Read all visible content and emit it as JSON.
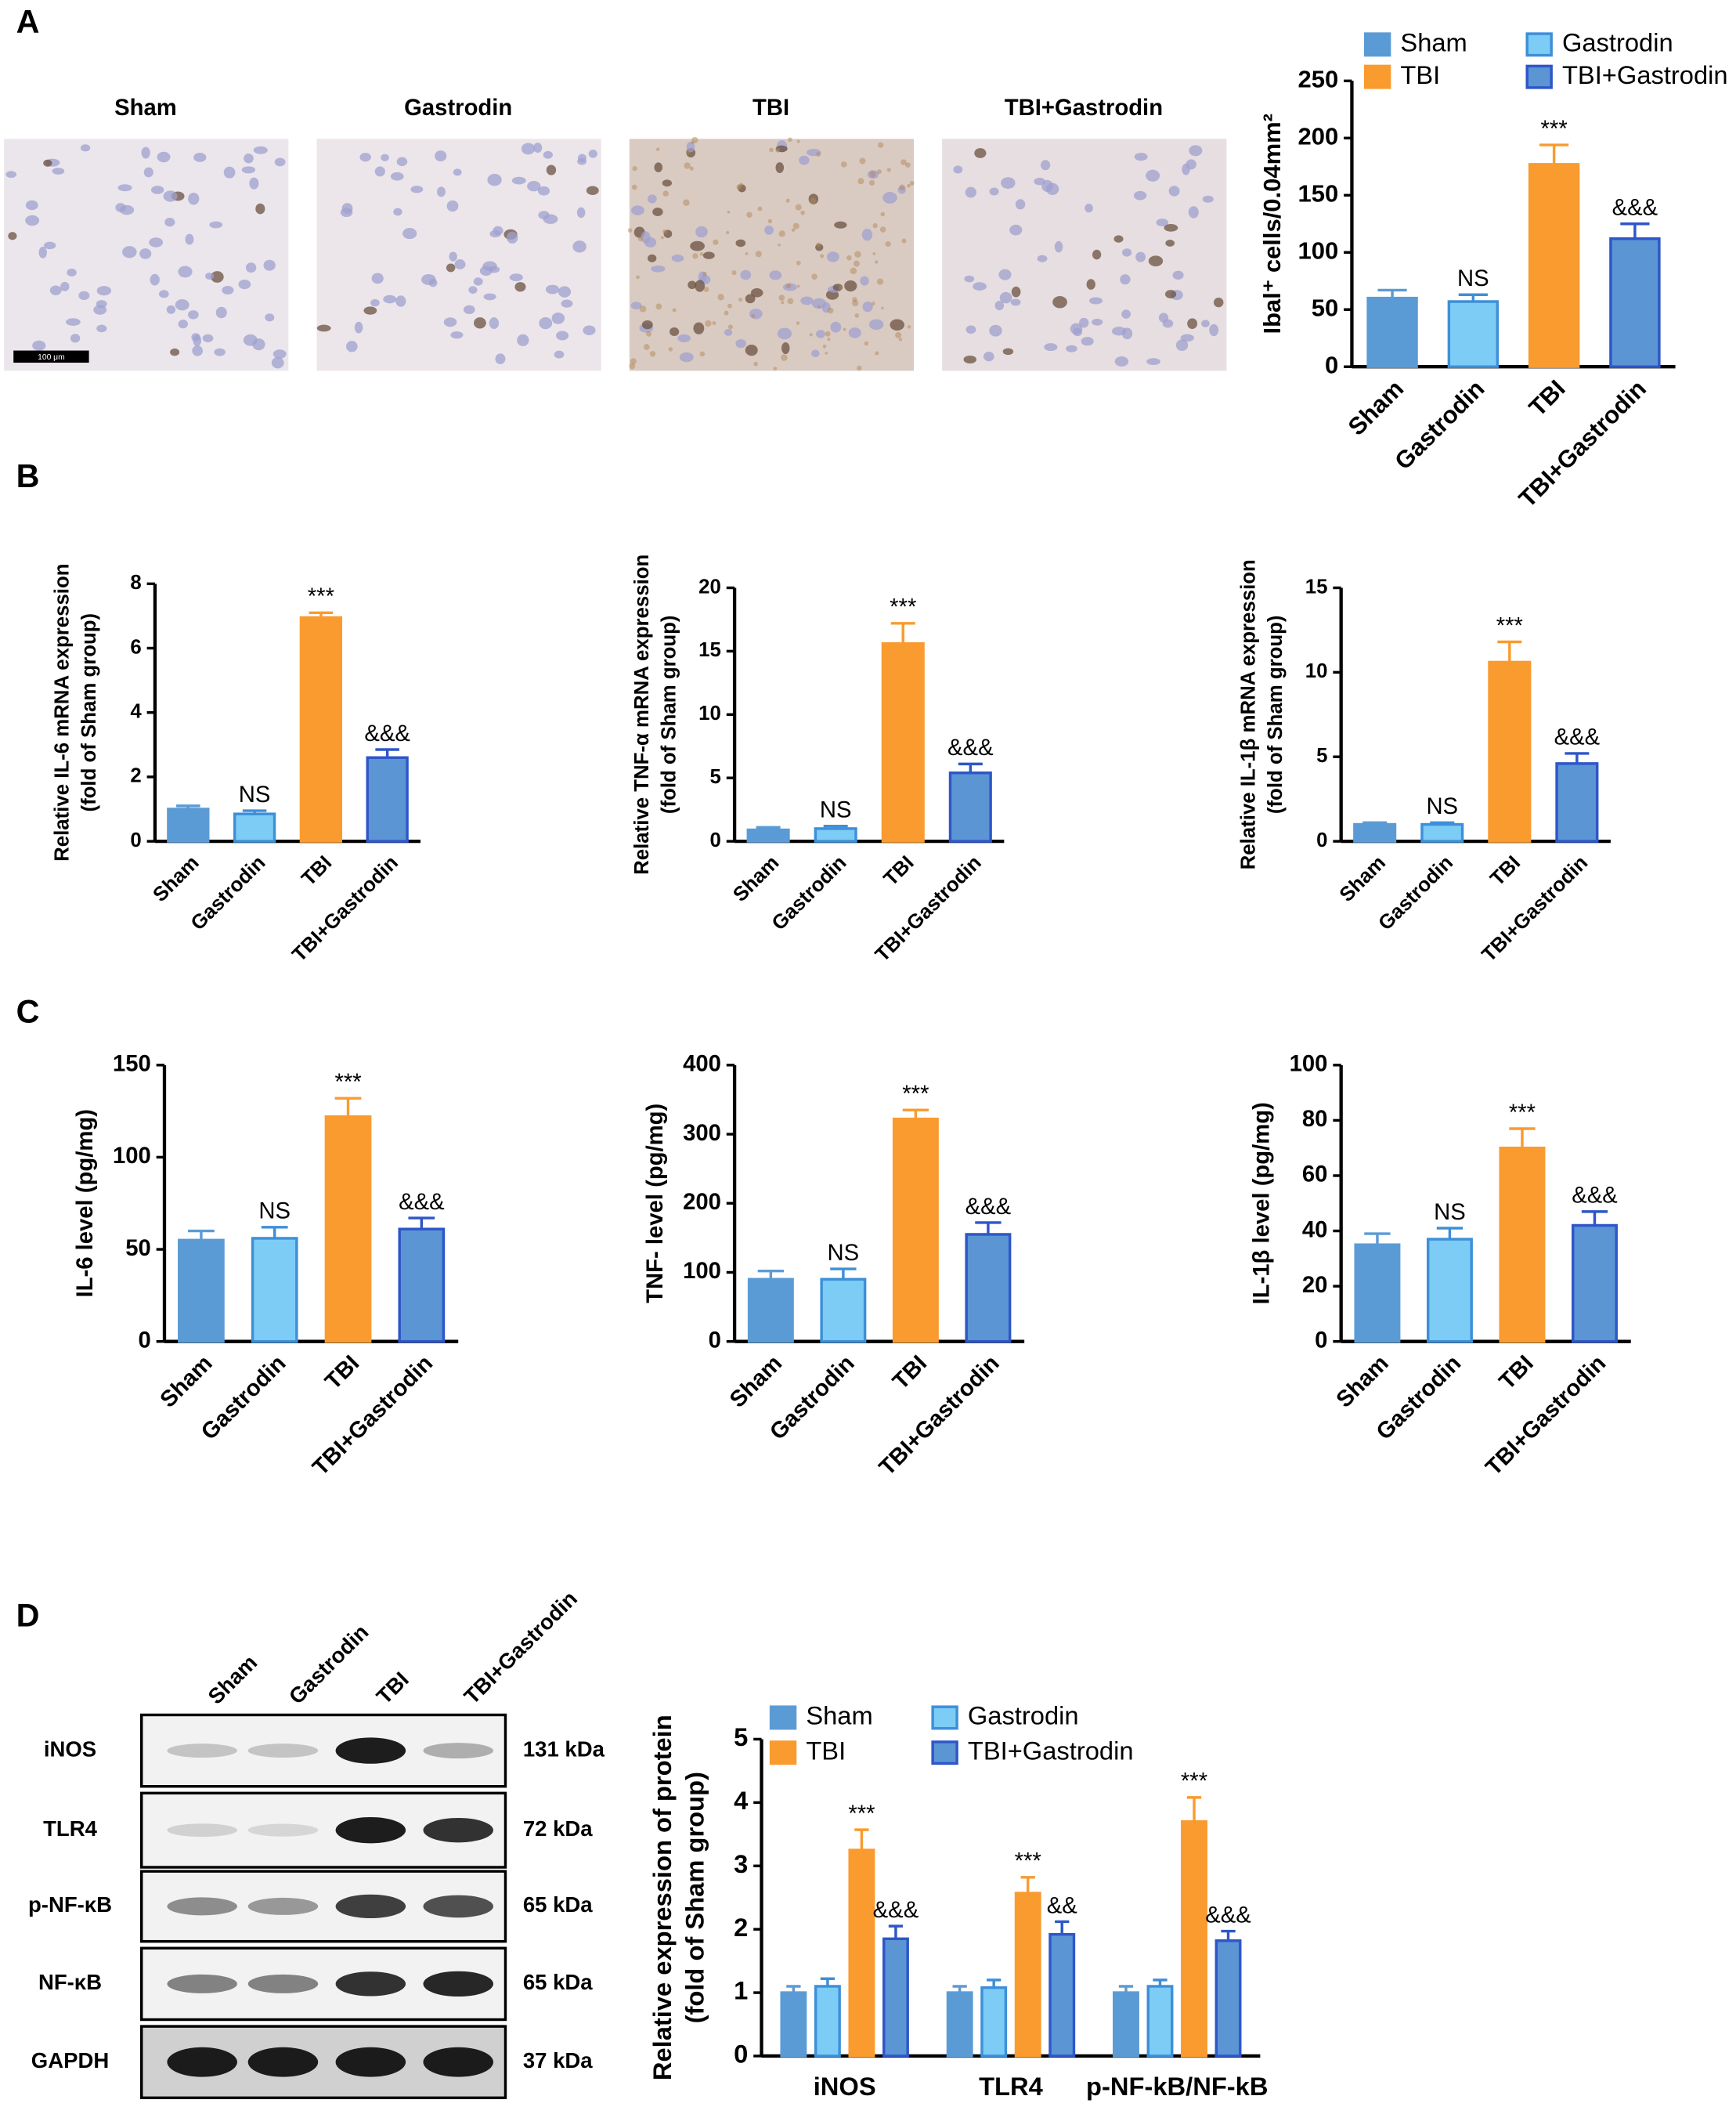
{
  "figure": {
    "panels": [
      "A",
      "B",
      "C",
      "D"
    ],
    "micrographs": [
      "Sham",
      "Gastrodin",
      "TBI",
      "TBI+Gastrodin"
    ],
    "scale_bar": "100 μm",
    "blot": {
      "lanes": [
        "Sham",
        "Gastrodin",
        "TBI",
        "TBI+Gastrodin"
      ],
      "rows": [
        {
          "label": "iNOS",
          "size": "131 kDa"
        },
        {
          "label": "TLR4",
          "size": "72 kDa"
        },
        {
          "label": "p-NF-κB",
          "size": "65 kDa"
        },
        {
          "label": "NF-κB",
          "size": "65 kDa"
        },
        {
          "label": "GAPDH",
          "size": "37 kDa"
        }
      ]
    }
  },
  "chart_data": [
    {
      "type": "bar",
      "ylabel": [
        "Ibal⁺ cells/0.04mm²"
      ],
      "categories": [
        "Sham",
        "Gastrodin",
        "TBI",
        "TBI+Gastrodin"
      ],
      "values": [
        60,
        57,
        177,
        112
      ],
      "errors": [
        7,
        6,
        17,
        13
      ],
      "colors": [
        "#5b9bd5",
        "#7dccf5",
        "#f99b2f",
        "#5b95d3"
      ],
      "edgecolors": [
        "#5b9bd5",
        "#3d8fd8",
        "#f99b2f",
        "#2e56c9"
      ],
      "annotations": [
        null,
        "NS",
        "***",
        "&&&"
      ],
      "ylim": [
        0,
        250
      ],
      "yticks": [
        0,
        50,
        100,
        150,
        200,
        250
      ],
      "legend": true
    },
    {
      "type": "bar",
      "ylabel": [
        "Relative IL-6 mRNA expression",
        "(fold of Sham group)"
      ],
      "categories": [
        "Sham",
        "Gastrodin",
        "TBI",
        "TBI+Gastrodin"
      ],
      "values": [
        1.0,
        0.85,
        6.95,
        2.6
      ],
      "errors": [
        0.1,
        0.1,
        0.15,
        0.25
      ],
      "colors": [
        "#5b9bd5",
        "#7dccf5",
        "#f99b2f",
        "#5b95d3"
      ],
      "edgecolors": [
        "#5b9bd5",
        "#3d8fd8",
        "#f99b2f",
        "#2e56c9"
      ],
      "annotations": [
        null,
        "NS",
        "***",
        "&&&"
      ],
      "ylim": [
        0,
        8
      ],
      "yticks": [
        0,
        2,
        4,
        6,
        8
      ],
      "legend": false
    },
    {
      "type": "bar",
      "ylabel": [
        "Relative TNF-α mRNA expression",
        "(fold of Sham group)"
      ],
      "categories": [
        "Sham",
        "Gastrodin",
        "TBI",
        "TBI+Gastrodin"
      ],
      "values": [
        0.9,
        1.0,
        15.6,
        5.4
      ],
      "errors": [
        0.2,
        0.2,
        1.6,
        0.7
      ],
      "colors": [
        "#5b9bd5",
        "#7dccf5",
        "#f99b2f",
        "#5b95d3"
      ],
      "edgecolors": [
        "#5b9bd5",
        "#3d8fd8",
        "#f99b2f",
        "#2e56c9"
      ],
      "annotations": [
        null,
        "NS",
        "***",
        "&&&"
      ],
      "ylim": [
        0,
        20
      ],
      "yticks": [
        0,
        5,
        10,
        15,
        20
      ],
      "legend": false
    },
    {
      "type": "bar",
      "ylabel": [
        "Relative IL-1β mRNA expression",
        "(fold of Sham group)"
      ],
      "categories": [
        "Sham",
        "Gastrodin",
        "TBI",
        "TBI+Gastrodin"
      ],
      "values": [
        1.0,
        1.0,
        10.6,
        4.6
      ],
      "errors": [
        0.1,
        0.1,
        1.2,
        0.6
      ],
      "colors": [
        "#5b9bd5",
        "#7dccf5",
        "#f99b2f",
        "#5b95d3"
      ],
      "edgecolors": [
        "#5b9bd5",
        "#3d8fd8",
        "#f99b2f",
        "#2e56c9"
      ],
      "annotations": [
        null,
        "NS",
        "***",
        "&&&"
      ],
      "ylim": [
        0,
        15
      ],
      "yticks": [
        0,
        5,
        10,
        15
      ],
      "legend": false
    },
    {
      "type": "bar",
      "ylabel": [
        "IL-6 level (pg/mg)"
      ],
      "categories": [
        "Sham",
        "Gastrodin",
        "TBI",
        "TBI+Gastrodin"
      ],
      "values": [
        55,
        56,
        122,
        61
      ],
      "errors": [
        5,
        6,
        10,
        6
      ],
      "colors": [
        "#5b9bd5",
        "#7dccf5",
        "#f99b2f",
        "#5b95d3"
      ],
      "edgecolors": [
        "#5b9bd5",
        "#3d8fd8",
        "#f99b2f",
        "#2e56c9"
      ],
      "annotations": [
        null,
        "NS",
        "***",
        "&&&"
      ],
      "ylim": [
        0,
        150
      ],
      "yticks": [
        0,
        50,
        100,
        150
      ],
      "legend": false
    },
    {
      "type": "bar",
      "ylabel": [
        "TNF- level (pg/mg)"
      ],
      "categories": [
        "Sham",
        "Gastrodin",
        "TBI",
        "TBI+Gastrodin"
      ],
      "values": [
        90,
        90,
        322,
        155
      ],
      "errors": [
        12,
        15,
        13,
        17
      ],
      "colors": [
        "#5b9bd5",
        "#7dccf5",
        "#f99b2f",
        "#5b95d3"
      ],
      "edgecolors": [
        "#5b9bd5",
        "#3d8fd8",
        "#f99b2f",
        "#2e56c9"
      ],
      "annotations": [
        null,
        "NS",
        "***",
        "&&&"
      ],
      "ylim": [
        0,
        400
      ],
      "yticks": [
        0,
        100,
        200,
        300,
        400
      ],
      "legend": false
    },
    {
      "type": "bar",
      "ylabel": [
        "IL-1β level (pg/mg)"
      ],
      "categories": [
        "Sham",
        "Gastrodin",
        "TBI",
        "TBI+Gastrodin"
      ],
      "values": [
        35,
        37,
        70,
        42
      ],
      "errors": [
        4,
        4,
        7,
        5
      ],
      "colors": [
        "#5b9bd5",
        "#7dccf5",
        "#f99b2f",
        "#5b95d3"
      ],
      "edgecolors": [
        "#5b9bd5",
        "#3d8fd8",
        "#f99b2f",
        "#2e56c9"
      ],
      "annotations": [
        null,
        "NS",
        "***",
        "&&&"
      ],
      "ylim": [
        0,
        100
      ],
      "yticks": [
        0,
        20,
        40,
        60,
        80,
        100
      ],
      "legend": false
    },
    {
      "type": "grouped_bar",
      "ylabel": [
        "Relative expression of protein",
        "(fold of Sham group)"
      ],
      "categories": [
        "iNOS",
        "TLR4",
        "p-NF-kB/NF-kB"
      ],
      "series": [
        {
          "name": "Sham",
          "color": "#5b9bd5",
          "edgecolor": "#5b9bd5",
          "values": [
            1.0,
            1.0,
            1.0
          ],
          "errors": [
            0.1,
            0.1,
            0.1
          ],
          "annotations": [
            null,
            null,
            null
          ]
        },
        {
          "name": "Gastrodin",
          "color": "#7dccf5",
          "edgecolor": "#3d8fd8",
          "values": [
            1.1,
            1.08,
            1.1
          ],
          "errors": [
            0.12,
            0.12,
            0.1
          ],
          "annotations": [
            null,
            null,
            null
          ]
        },
        {
          "name": "TBI",
          "color": "#f99b2f",
          "edgecolor": "#f99b2f",
          "values": [
            3.25,
            2.57,
            3.7
          ],
          "errors": [
            0.32,
            0.25,
            0.38
          ],
          "annotations": [
            "***",
            "***",
            "***"
          ]
        },
        {
          "name": "TBI+Gastrodin",
          "color": "#5b95d3",
          "edgecolor": "#2e56c9",
          "values": [
            1.85,
            1.92,
            1.82
          ],
          "errors": [
            0.2,
            0.2,
            0.15
          ],
          "annotations": [
            "&&&",
            "&&",
            "&&&"
          ]
        }
      ],
      "ylim": [
        0,
        5
      ],
      "yticks": [
        0,
        1,
        2,
        3,
        4,
        5
      ],
      "legend": true
    }
  ]
}
